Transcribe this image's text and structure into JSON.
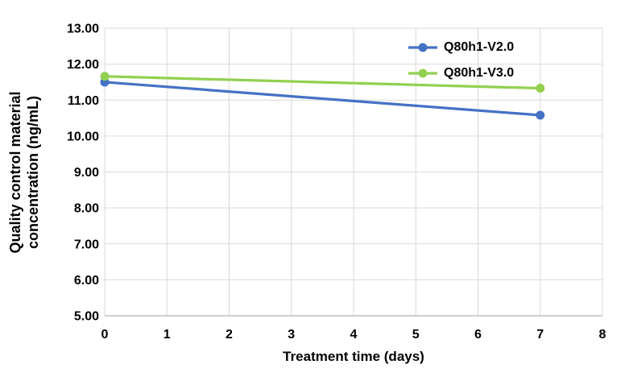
{
  "chart_data": {
    "type": "line",
    "title": "",
    "xlabel": "Treatment time (days)",
    "ylabel": "Quality control material concentration (ng/mL)",
    "ylabel_lines": [
      "Quality control material",
      "concentration (ng/mL)"
    ],
    "x": [
      0,
      7
    ],
    "series": [
      {
        "name": "Q80h1-V2.0",
        "color": "#4472C4",
        "values": [
          11.5,
          10.58
        ]
      },
      {
        "name": "Q80h1-V3.0",
        "color": "#92D050",
        "values": [
          11.66,
          11.33
        ]
      }
    ],
    "xlim": [
      0,
      8
    ],
    "ylim": [
      5,
      13
    ],
    "xticks": [
      0,
      1,
      2,
      3,
      4,
      5,
      6,
      7,
      8
    ],
    "xtick_labels": [
      "0",
      "1",
      "2",
      "3",
      "4",
      "5",
      "6",
      "7",
      "8"
    ],
    "yticks": [
      5,
      6,
      7,
      8,
      9,
      10,
      11,
      12,
      13
    ],
    "ytick_labels": [
      "5.00",
      "6.00",
      "7.00",
      "8.00",
      "9.00",
      "10.00",
      "11.00",
      "12.00",
      "13.00"
    ],
    "grid": true,
    "legend_position": "top-right-inside",
    "marker": "circle",
    "colors": {
      "grid": "#D9D9D9",
      "axis": "#BFBFBF",
      "text": "#000000",
      "background": "#FFFFFF"
    }
  }
}
